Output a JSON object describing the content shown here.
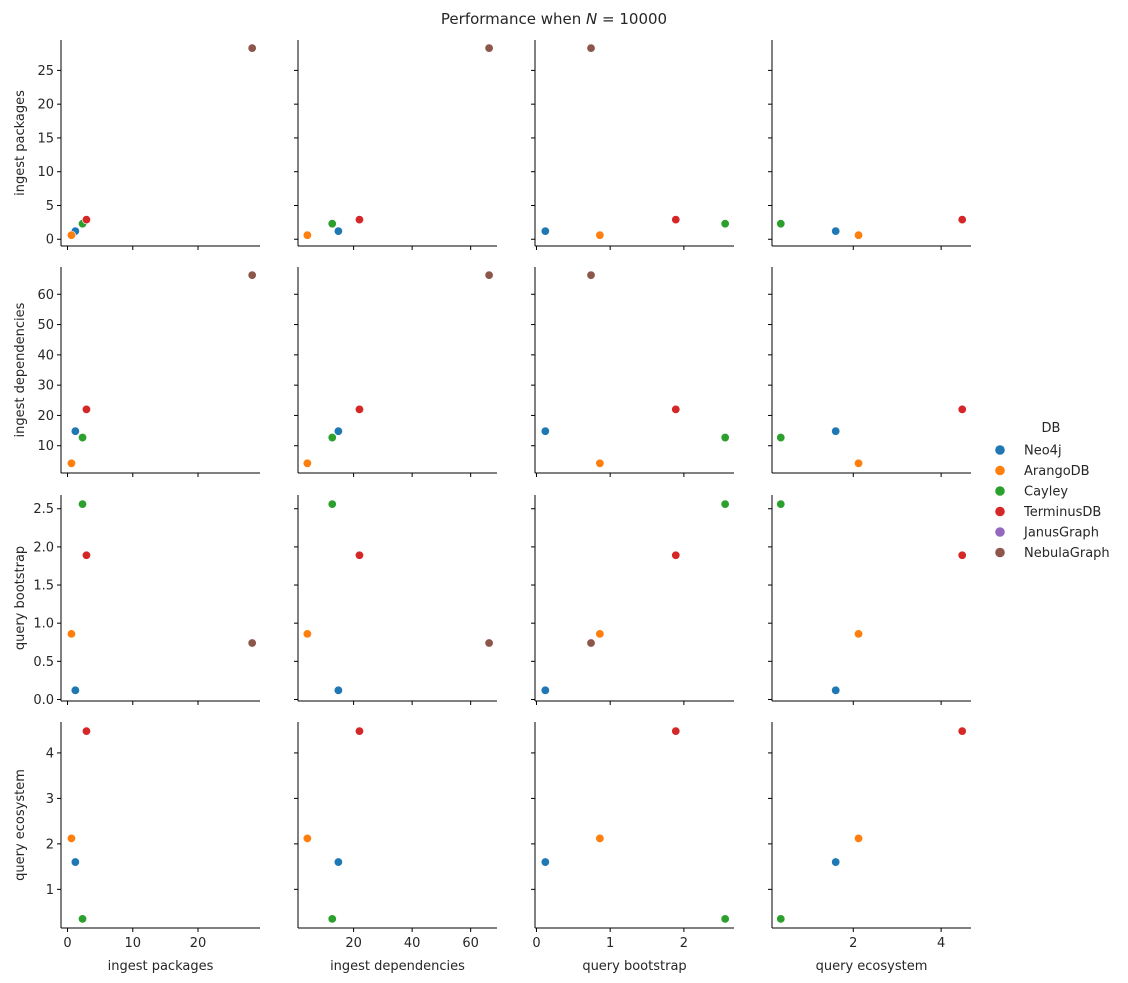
{
  "chart_data": {
    "type": "scatter",
    "subtype": "pairplot",
    "title": "Performance when N = 10000",
    "title_prefix": "Performance when ",
    "title_var": "N",
    "title_rest": " = 10000",
    "variables": [
      "ingest packages",
      "ingest dependencies",
      "query bootstrap",
      "query ecosystem"
    ],
    "axes": {
      "ingest packages": {
        "range": [
          -1.0,
          29.5
        ],
        "ticks": [
          0,
          5,
          10,
          15,
          20,
          25
        ],
        "x_ticks": [
          0,
          10,
          20
        ]
      },
      "ingest dependencies": {
        "range": [
          1.0,
          69.0
        ],
        "ticks": [
          10,
          20,
          30,
          40,
          50,
          60
        ],
        "x_ticks": [
          20,
          40,
          60
        ]
      },
      "query bootstrap": {
        "range": [
          -0.02,
          2.68
        ],
        "ticks": [
          0.0,
          0.5,
          1.0,
          1.5,
          2.0,
          2.5
        ],
        "tick_labels": [
          "0.0",
          "0.5",
          "1.0",
          "1.5",
          "2.0",
          "2.5"
        ],
        "x_ticks": [
          0,
          1,
          2
        ]
      },
      "query ecosystem": {
        "range": [
          0.15,
          4.68
        ],
        "ticks": [
          1,
          2,
          3,
          4
        ],
        "x_ticks": [
          2,
          4
        ]
      }
    },
    "legend": {
      "title": "DB",
      "placement": "right",
      "entries": [
        {
          "name": "Neo4j",
          "color": "#1f77b4"
        },
        {
          "name": "ArangoDB",
          "color": "#ff7f0e"
        },
        {
          "name": "Cayley",
          "color": "#2ca02c"
        },
        {
          "name": "TerminusDB",
          "color": "#d62728"
        },
        {
          "name": "JanusGraph",
          "color": "#9467bd"
        },
        {
          "name": "NebulaGraph",
          "color": "#8c564b"
        }
      ]
    },
    "series": [
      {
        "name": "Neo4j",
        "values": {
          "ingest packages": 1.2,
          "ingest dependencies": 14.8,
          "query bootstrap": 0.12,
          "query ecosystem": 1.6
        }
      },
      {
        "name": "ArangoDB",
        "values": {
          "ingest packages": 0.6,
          "ingest dependencies": 4.2,
          "query bootstrap": 0.86,
          "query ecosystem": 2.12
        }
      },
      {
        "name": "Cayley",
        "values": {
          "ingest packages": 2.3,
          "ingest dependencies": 12.7,
          "query bootstrap": 2.56,
          "query ecosystem": 0.35
        }
      },
      {
        "name": "TerminusDB",
        "values": {
          "ingest packages": 2.9,
          "ingest dependencies": 22.0,
          "query bootstrap": 1.89,
          "query ecosystem": 4.48
        }
      },
      {
        "name": "JanusGraph",
        "values": null
      },
      {
        "name": "NebulaGraph",
        "values": {
          "ingest packages": 28.3,
          "ingest dependencies": 66.3,
          "query bootstrap": 0.74,
          "query ecosystem": null
        }
      }
    ]
  }
}
